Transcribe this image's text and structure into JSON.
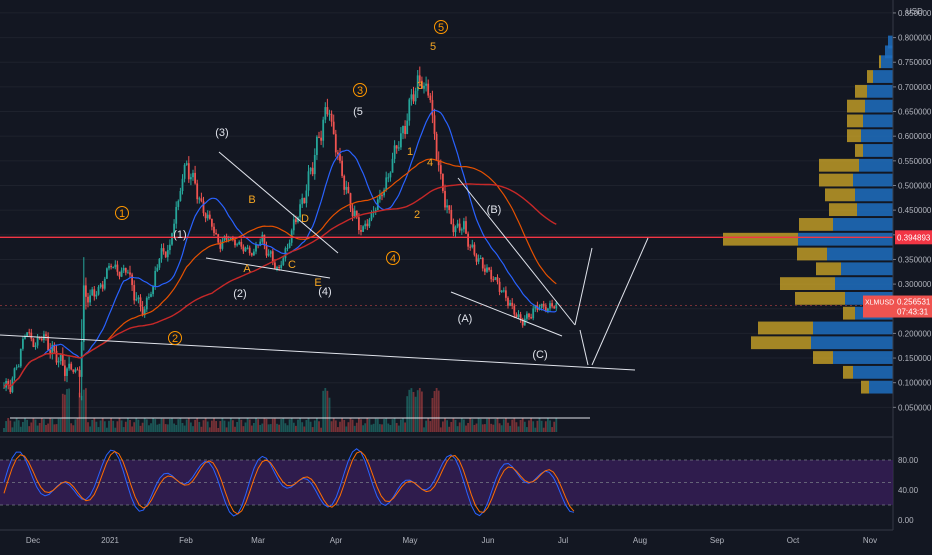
{
  "chart_data": {
    "type": "candlestick",
    "symbol": "XLMUSD",
    "currency": "USD",
    "last_price": "0.256531",
    "countdown": "07:43:31",
    "resistance_price": "0.394893",
    "ylim": [
      0.0,
      0.86
    ],
    "y_ticks": [
      "0.850000",
      "0.800000",
      "0.750000",
      "0.700000",
      "0.650000",
      "0.600000",
      "0.550000",
      "0.500000",
      "0.450000",
      "0.400000",
      "0.350000",
      "0.300000",
      "0.250000",
      "0.200000",
      "0.150000",
      "0.100000",
      "0.050000"
    ],
    "x_ticks": [
      "Dec",
      "2021",
      "Feb",
      "Mar",
      "Apr",
      "May",
      "Jun",
      "Jul",
      "Aug",
      "Sep",
      "Oct",
      "Nov"
    ],
    "osc_ticks": [
      "80.00",
      "40.00",
      "0.00"
    ],
    "price_path": [
      [
        0.09,
        0.09
      ],
      [
        0.15,
        0.05
      ],
      [
        0.22,
        0.04
      ],
      [
        0.17,
        0.07
      ],
      [
        0.2,
        0.06
      ],
      [
        0.16,
        0.12
      ],
      [
        0.14,
        0.1
      ],
      [
        0.12,
        0.13
      ],
      [
        0.12,
        0.04
      ],
      [
        0.3,
        0.5
      ],
      [
        0.28,
        0.1
      ],
      [
        0.3,
        0.06
      ],
      [
        0.35,
        0.05
      ],
      [
        0.32,
        0.08
      ],
      [
        0.33,
        0.06
      ],
      [
        0.26,
        0.12
      ],
      [
        0.24,
        0.1
      ],
      [
        0.3,
        0.06
      ],
      [
        0.38,
        0.08
      ],
      [
        0.37,
        0.1
      ],
      [
        0.48,
        0.1
      ],
      [
        0.56,
        0.08
      ],
      [
        0.5,
        0.12
      ],
      [
        0.44,
        0.1
      ],
      [
        0.42,
        0.08
      ],
      [
        0.37,
        0.07
      ],
      [
        0.4,
        0.06
      ],
      [
        0.38,
        0.05
      ],
      [
        0.37,
        0.06
      ],
      [
        0.36,
        0.05
      ],
      [
        0.4,
        0.06
      ],
      [
        0.35,
        0.08
      ],
      [
        0.32,
        0.06
      ],
      [
        0.38,
        0.07
      ],
      [
        0.44,
        0.09
      ],
      [
        0.48,
        0.09
      ],
      [
        0.55,
        0.12
      ],
      [
        0.62,
        0.12
      ],
      [
        0.67,
        0.14
      ],
      [
        0.55,
        0.12
      ],
      [
        0.48,
        0.11
      ],
      [
        0.43,
        0.1
      ],
      [
        0.4,
        0.09
      ],
      [
        0.44,
        0.08
      ],
      [
        0.48,
        0.09
      ],
      [
        0.52,
        0.1
      ],
      [
        0.59,
        0.11
      ],
      [
        0.62,
        0.12
      ],
      [
        0.7,
        0.13
      ],
      [
        0.72,
        0.15
      ],
      [
        0.68,
        0.12
      ],
      [
        0.52,
        0.16
      ],
      [
        0.44,
        0.12
      ],
      [
        0.4,
        0.1
      ],
      [
        0.42,
        0.09
      ],
      [
        0.36,
        0.08
      ],
      [
        0.34,
        0.07
      ],
      [
        0.32,
        0.07
      ],
      [
        0.3,
        0.06
      ],
      [
        0.27,
        0.07
      ],
      [
        0.24,
        0.08
      ],
      [
        0.22,
        0.07
      ],
      [
        0.24,
        0.06
      ],
      [
        0.26,
        0.07
      ],
      [
        0.25,
        0.06
      ],
      [
        0.26,
        0.06
      ]
    ],
    "wave_labels_orange": [
      "1",
      "2",
      "3",
      "4",
      "5"
    ],
    "wave_labels_white": [
      "(1)",
      "(2)",
      "(3)",
      "(4)",
      "(5",
      "(A)",
      "(B)",
      "(C)"
    ],
    "abc_labels": [
      "A",
      "B",
      "C",
      "D",
      "E",
      "1",
      "2",
      "3",
      "4",
      "5"
    ],
    "colors": {
      "background": "#131722",
      "up": "#26a69a",
      "down": "#ef5350",
      "resistance": "#f23645",
      "ma_blue": "#2962ff",
      "ma_orange": "#e65100",
      "ma_red": "#c62828",
      "profile_blue": "#1e6fbf",
      "profile_gold": "#c9a227",
      "osc_fill": "#3a1f5c",
      "stoch_k": "#2962ff",
      "stoch_d": "#ff6d00"
    }
  }
}
